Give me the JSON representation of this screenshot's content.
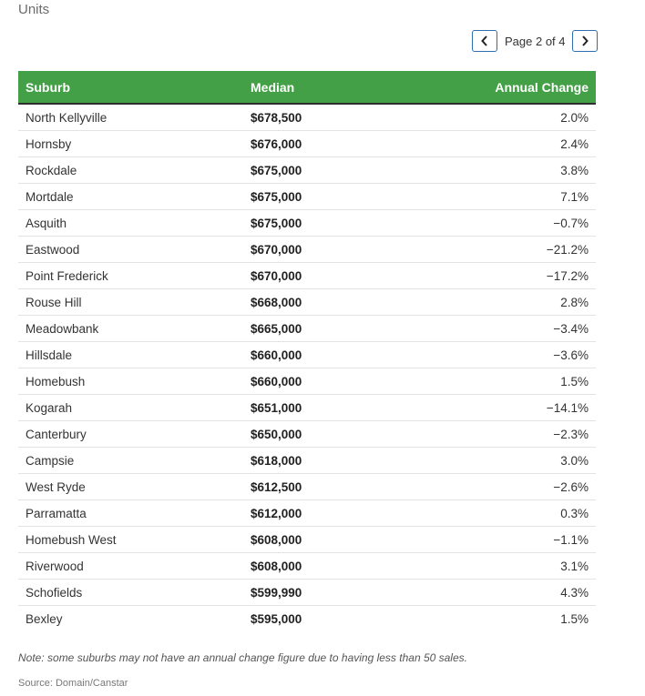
{
  "heading": "Units",
  "pager": {
    "label": "Page 2 of 4",
    "prev_icon": "chevron-left-icon",
    "next_icon": "chevron-right-icon",
    "border_color": "#2f6fb0"
  },
  "table": {
    "header_color": "#43a047",
    "columns": [
      "Suburb",
      "Median",
      "Annual Change"
    ],
    "rows": [
      {
        "suburb": "North Kellyville",
        "median": "$678,500",
        "change": "2.0%"
      },
      {
        "suburb": "Hornsby",
        "median": "$676,000",
        "change": "2.4%"
      },
      {
        "suburb": "Rockdale",
        "median": "$675,000",
        "change": "3.8%"
      },
      {
        "suburb": "Mortdale",
        "median": "$675,000",
        "change": "7.1%"
      },
      {
        "suburb": "Asquith",
        "median": "$675,000",
        "change": "−0.7%"
      },
      {
        "suburb": "Eastwood",
        "median": "$670,000",
        "change": "−21.2%"
      },
      {
        "suburb": "Point Frederick",
        "median": "$670,000",
        "change": "−17.2%"
      },
      {
        "suburb": "Rouse Hill",
        "median": "$668,000",
        "change": "2.8%"
      },
      {
        "suburb": "Meadowbank",
        "median": "$665,000",
        "change": "−3.4%"
      },
      {
        "suburb": "Hillsdale",
        "median": "$660,000",
        "change": "−3.6%"
      },
      {
        "suburb": "Homebush",
        "median": "$660,000",
        "change": "1.5%"
      },
      {
        "suburb": "Kogarah",
        "median": "$651,000",
        "change": "−14.1%"
      },
      {
        "suburb": "Canterbury",
        "median": "$650,000",
        "change": "−2.3%"
      },
      {
        "suburb": "Campsie",
        "median": "$618,000",
        "change": "3.0%"
      },
      {
        "suburb": "West Ryde",
        "median": "$612,500",
        "change": "−2.6%"
      },
      {
        "suburb": "Parramatta",
        "median": "$612,000",
        "change": "0.3%"
      },
      {
        "suburb": "Homebush West",
        "median": "$608,000",
        "change": "−1.1%"
      },
      {
        "suburb": "Riverwood",
        "median": "$608,000",
        "change": "3.1%"
      },
      {
        "suburb": "Schofields",
        "median": "$599,990",
        "change": "4.3%"
      },
      {
        "suburb": "Bexley",
        "median": "$595,000",
        "change": "1.5%"
      }
    ]
  },
  "note": "Note: some suburbs may not have an annual change figure due to having less than 50 sales.",
  "source": "Source: Domain/Canstar"
}
